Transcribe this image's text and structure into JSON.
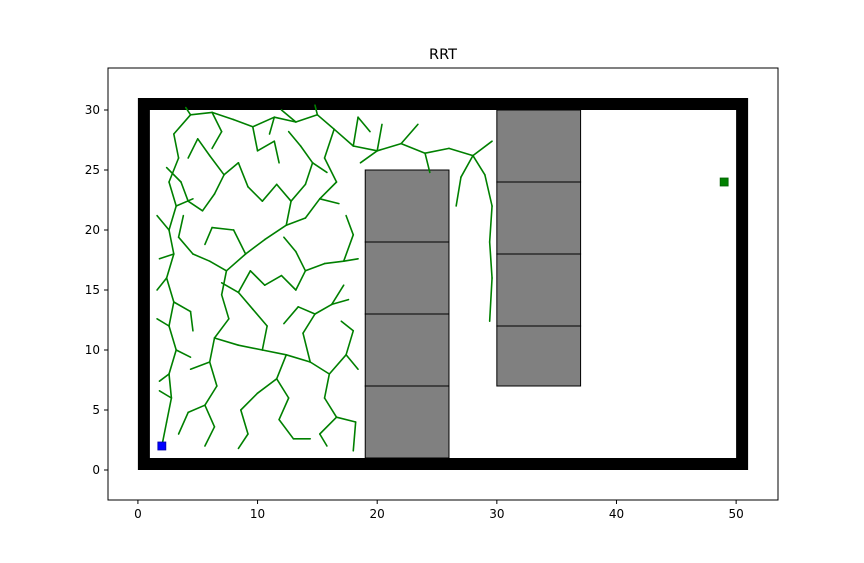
{
  "title": "RRT",
  "chart_data": {
    "type": "scatter",
    "title": "RRT",
    "xlabel": "",
    "ylabel": "",
    "xlim": [
      -2.5,
      53.5
    ],
    "ylim": [
      -2.5,
      33.5
    ],
    "x_ticks": [
      "0",
      "10",
      "20",
      "30",
      "40",
      "50"
    ],
    "y_ticks": [
      "0",
      "5",
      "10",
      "15",
      "20",
      "25",
      "30"
    ],
    "x_tick_values": [
      0,
      10,
      20,
      30,
      40,
      50
    ],
    "y_tick_values": [
      0,
      5,
      10,
      15,
      20,
      25,
      30
    ],
    "grid": false,
    "colors": {
      "wall": "#000000",
      "obstacle": "#808080",
      "tree": "#008000",
      "start": "#0000ff",
      "goal": "#008000"
    },
    "boundary": {
      "x0": 0.5,
      "y0": 0.5,
      "x1": 50.5,
      "y1": 30.5
    },
    "obstacles": [
      {
        "x0": 19,
        "y0": 1,
        "x1": 26,
        "y1": 7
      },
      {
        "x0": 19,
        "y0": 7,
        "x1": 26,
        "y1": 13
      },
      {
        "x0": 19,
        "y0": 13,
        "x1": 26,
        "y1": 19
      },
      {
        "x0": 19,
        "y0": 19,
        "x1": 26,
        "y1": 25
      },
      {
        "x0": 30,
        "y0": 7,
        "x1": 37,
        "y1": 12
      },
      {
        "x0": 30,
        "y0": 12,
        "x1": 37,
        "y1": 18
      },
      {
        "x0": 30,
        "y0": 18,
        "x1": 37,
        "y1": 24
      },
      {
        "x0": 30,
        "y0": 24,
        "x1": 37,
        "y1": 30
      }
    ],
    "start": {
      "x": 2,
      "y": 2
    },
    "goal": {
      "x": 49,
      "y": 24
    },
    "tree_edges": [
      [
        2,
        2,
        2.4,
        4
      ],
      [
        2.4,
        4,
        2.8,
        6
      ],
      [
        2.8,
        6,
        2.6,
        8
      ],
      [
        2.6,
        8,
        3.2,
        10
      ],
      [
        3.2,
        10,
        2.6,
        12
      ],
      [
        2.6,
        12,
        3.0,
        14
      ],
      [
        3.0,
        14,
        2.4,
        16
      ],
      [
        2.4,
        16,
        3.0,
        18
      ],
      [
        3.0,
        18,
        2.6,
        20
      ],
      [
        2.6,
        20,
        3.2,
        22
      ],
      [
        3.2,
        22,
        2.6,
        24
      ],
      [
        2.6,
        24,
        3.4,
        26
      ],
      [
        3.4,
        26,
        3.0,
        28
      ],
      [
        3.0,
        28,
        4.4,
        29.6
      ],
      [
        4.4,
        29.6,
        6.2,
        29.8
      ],
      [
        6.2,
        29.8,
        8.0,
        29.2
      ],
      [
        8.0,
        29.2,
        9.6,
        28.6
      ],
      [
        9.6,
        28.6,
        11.4,
        29.4
      ],
      [
        11.4,
        29.4,
        13.2,
        29.0
      ],
      [
        13.2,
        29.0,
        15.0,
        29.6
      ],
      [
        15.0,
        29.6,
        16.4,
        28.4
      ],
      [
        16.4,
        28.4,
        18.0,
        27.0
      ],
      [
        18.0,
        27.0,
        20.0,
        26.6
      ],
      [
        20.0,
        26.6,
        22.0,
        27.2
      ],
      [
        22.0,
        27.2,
        24.0,
        26.4
      ],
      [
        24.0,
        26.4,
        26.0,
        26.8
      ],
      [
        26.0,
        26.8,
        28.0,
        26.2
      ],
      [
        28.0,
        26.2,
        29.6,
        27.4
      ],
      [
        28.0,
        26.2,
        27.0,
        24.4
      ],
      [
        27.0,
        24.4,
        26.6,
        22.0
      ],
      [
        28.0,
        26.2,
        29.0,
        24.6
      ],
      [
        29.0,
        24.6,
        29.6,
        22.0
      ],
      [
        29.6,
        22.0,
        29.4,
        19.0
      ],
      [
        29.4,
        19.0,
        29.6,
        16.0
      ],
      [
        29.6,
        16.0,
        29.4,
        12.4
      ],
      [
        22.0,
        27.2,
        23.4,
        28.8
      ],
      [
        20.0,
        26.6,
        18.6,
        25.6
      ],
      [
        16.4,
        28.4,
        15.6,
        26.0
      ],
      [
        15.6,
        26.0,
        16.6,
        24.0
      ],
      [
        16.6,
        24.0,
        15.2,
        22.6
      ],
      [
        15.2,
        22.6,
        14.0,
        21.0
      ],
      [
        14.0,
        21.0,
        12.4,
        20.4
      ],
      [
        12.4,
        20.4,
        10.6,
        19.2
      ],
      [
        10.6,
        19.2,
        9.0,
        18.0
      ],
      [
        9.0,
        18.0,
        7.4,
        16.6
      ],
      [
        7.4,
        16.6,
        6.0,
        17.4
      ],
      [
        6.0,
        17.4,
        4.6,
        18.0
      ],
      [
        4.6,
        18.0,
        3.4,
        19.4
      ],
      [
        7.4,
        16.6,
        7.0,
        14.6
      ],
      [
        7.0,
        14.6,
        7.6,
        12.6
      ],
      [
        7.6,
        12.6,
        6.4,
        11.0
      ],
      [
        6.4,
        11.0,
        6.0,
        9.0
      ],
      [
        6.0,
        9.0,
        6.6,
        7.0
      ],
      [
        6.6,
        7.0,
        5.6,
        5.4
      ],
      [
        5.6,
        5.4,
        6.4,
        3.6
      ],
      [
        6.4,
        3.6,
        5.6,
        2.0
      ],
      [
        5.6,
        5.4,
        4.2,
        4.8
      ],
      [
        4.2,
        4.8,
        3.4,
        3.0
      ],
      [
        6.0,
        9.0,
        4.4,
        8.4
      ],
      [
        6.4,
        11.0,
        8.4,
        10.4
      ],
      [
        8.4,
        10.4,
        10.4,
        10.0
      ],
      [
        10.4,
        10.0,
        12.4,
        9.6
      ],
      [
        12.4,
        9.6,
        14.4,
        9.0
      ],
      [
        14.4,
        9.0,
        16.0,
        8.0
      ],
      [
        16.0,
        8.0,
        17.4,
        9.6
      ],
      [
        17.4,
        9.6,
        18.0,
        11.6
      ],
      [
        16.0,
        8.0,
        15.6,
        6.0
      ],
      [
        15.6,
        6.0,
        16.6,
        4.4
      ],
      [
        16.6,
        4.4,
        18.2,
        4.0
      ],
      [
        18.2,
        4.0,
        18.0,
        1.6
      ],
      [
        16.6,
        4.4,
        15.2,
        3.0
      ],
      [
        15.2,
        3.0,
        15.8,
        2.0
      ],
      [
        12.4,
        9.6,
        11.6,
        7.6
      ],
      [
        11.6,
        7.6,
        10.0,
        6.4
      ],
      [
        10.0,
        6.4,
        8.6,
        5.0
      ],
      [
        8.6,
        5.0,
        9.2,
        3.0
      ],
      [
        9.2,
        3.0,
        8.4,
        1.8
      ],
      [
        11.6,
        7.6,
        12.6,
        6.0
      ],
      [
        12.6,
        6.0,
        11.8,
        4.2
      ],
      [
        11.8,
        4.2,
        13.0,
        2.6
      ],
      [
        13.0,
        2.6,
        14.4,
        2.6
      ],
      [
        14.4,
        9.0,
        13.8,
        11.4
      ],
      [
        13.8,
        11.4,
        14.8,
        13.0
      ],
      [
        14.8,
        13.0,
        16.2,
        13.8
      ],
      [
        16.2,
        13.8,
        17.2,
        15.4
      ],
      [
        14.8,
        13.0,
        13.4,
        13.6
      ],
      [
        13.4,
        13.6,
        12.2,
        12.2
      ],
      [
        10.4,
        10.0,
        10.8,
        12.0
      ],
      [
        10.8,
        12.0,
        9.6,
        13.4
      ],
      [
        9.6,
        13.4,
        8.4,
        14.8
      ],
      [
        8.4,
        14.8,
        9.4,
        16.6
      ],
      [
        9.4,
        16.6,
        10.6,
        15.4
      ],
      [
        10.6,
        15.4,
        12.0,
        16.2
      ],
      [
        12.0,
        16.2,
        13.2,
        15.0
      ],
      [
        13.2,
        15.0,
        14.0,
        16.6
      ],
      [
        14.0,
        16.6,
        15.6,
        17.2
      ],
      [
        15.6,
        17.2,
        17.2,
        17.4
      ],
      [
        17.2,
        17.4,
        18.4,
        17.6
      ],
      [
        14.0,
        16.6,
        13.2,
        18.2
      ],
      [
        13.2,
        18.2,
        12.2,
        19.4
      ],
      [
        12.4,
        20.4,
        12.8,
        22.4
      ],
      [
        12.8,
        22.4,
        11.6,
        23.8
      ],
      [
        11.6,
        23.8,
        10.4,
        22.4
      ],
      [
        10.4,
        22.4,
        9.2,
        23.6
      ],
      [
        9.2,
        23.6,
        8.4,
        25.6
      ],
      [
        8.4,
        25.6,
        7.2,
        24.6
      ],
      [
        7.2,
        24.6,
        6.4,
        23.0
      ],
      [
        6.4,
        23.0,
        5.4,
        21.6
      ],
      [
        5.4,
        21.6,
        4.2,
        22.4
      ],
      [
        4.2,
        22.4,
        3.6,
        24.0
      ],
      [
        7.2,
        24.6,
        6.0,
        26.2
      ],
      [
        6.0,
        26.2,
        5.0,
        27.6
      ],
      [
        5.0,
        27.6,
        4.2,
        26.0
      ],
      [
        3.6,
        24.0,
        2.4,
        25.2
      ],
      [
        12.8,
        22.4,
        14.0,
        23.8
      ],
      [
        14.0,
        23.8,
        14.6,
        25.6
      ],
      [
        14.6,
        25.6,
        13.6,
        27.0
      ],
      [
        13.6,
        27.0,
        12.6,
        28.2
      ],
      [
        14.6,
        25.6,
        15.8,
        24.8
      ],
      [
        17.2,
        17.4,
        18.0,
        19.6
      ],
      [
        18.0,
        19.6,
        17.4,
        21.2
      ],
      [
        15.2,
        22.6,
        16.8,
        22.2
      ],
      [
        9.0,
        18.0,
        8.0,
        20.0
      ],
      [
        8.0,
        20.0,
        6.2,
        20.2
      ],
      [
        6.2,
        20.2,
        5.6,
        18.8
      ],
      [
        3.4,
        19.4,
        3.8,
        21.2
      ],
      [
        9.6,
        28.6,
        10.0,
        26.6
      ],
      [
        10.0,
        26.6,
        11.4,
        27.4
      ],
      [
        11.4,
        27.4,
        11.8,
        25.6
      ],
      [
        13.2,
        29.0,
        12.0,
        30.0
      ],
      [
        6.2,
        29.8,
        7.0,
        28.2
      ],
      [
        7.0,
        28.2,
        6.2,
        26.8
      ],
      [
        18.0,
        27.0,
        18.4,
        29.4
      ],
      [
        18.4,
        29.4,
        19.4,
        28.2
      ],
      [
        4.4,
        29.6,
        4.0,
        30.2
      ],
      [
        8.4,
        14.8,
        7.0,
        15.6
      ],
      [
        3.0,
        14,
        4.4,
        13.2
      ],
      [
        4.4,
        13.2,
        4.6,
        11.6
      ],
      [
        2.6,
        12,
        1.6,
        12.6
      ],
      [
        3.2,
        10,
        4.4,
        9.4
      ],
      [
        2.8,
        6,
        1.8,
        6.6
      ],
      [
        2.4,
        16,
        1.6,
        15.0
      ],
      [
        3.0,
        18,
        1.8,
        17.6
      ],
      [
        2.6,
        20,
        1.6,
        21.2
      ],
      [
        3.2,
        22,
        4.6,
        22.6
      ],
      [
        2.6,
        8,
        1.8,
        7.4
      ],
      [
        24.0,
        26.4,
        24.4,
        24.8
      ],
      [
        20.0,
        26.6,
        20.4,
        28.8
      ],
      [
        17.4,
        9.6,
        18.4,
        8.4
      ],
      [
        18.0,
        11.6,
        17.0,
        12.4
      ],
      [
        16.2,
        13.8,
        17.6,
        14.2
      ],
      [
        11.4,
        29.4,
        11.0,
        28.0
      ],
      [
        15.0,
        29.6,
        14.8,
        30.4
      ]
    ]
  }
}
